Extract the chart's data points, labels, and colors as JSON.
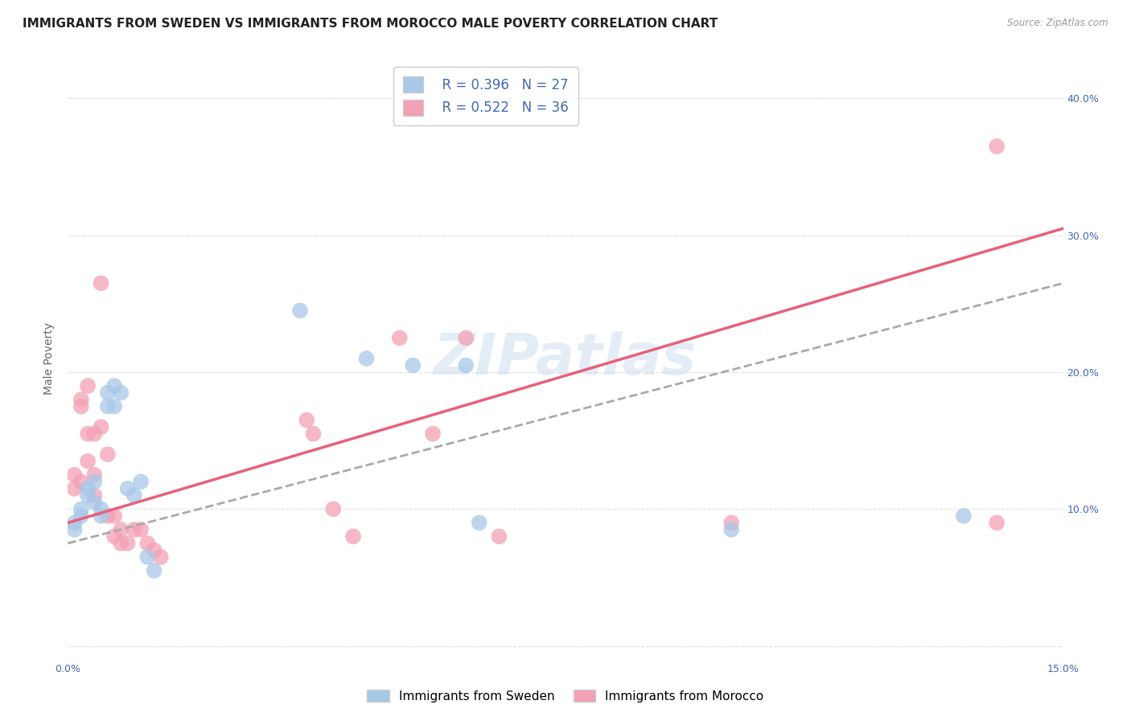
{
  "title": "IMMIGRANTS FROM SWEDEN VS IMMIGRANTS FROM MOROCCO MALE POVERTY CORRELATION CHART",
  "source": "Source: ZipAtlas.com",
  "ylabel": "Male Poverty",
  "xlim": [
    0.0,
    0.15
  ],
  "ylim": [
    -0.01,
    0.43
  ],
  "xticks": [
    0.0,
    0.03,
    0.06,
    0.09,
    0.12,
    0.15
  ],
  "xtick_labels": [
    "0.0%",
    "",
    "",
    "",
    "",
    "15.0%"
  ],
  "yticks": [
    0.0,
    0.1,
    0.2,
    0.3,
    0.4
  ],
  "ytick_labels": [
    "",
    "10.0%",
    "20.0%",
    "30.0%",
    "40.0%"
  ],
  "sweden_color": "#a8c8e8",
  "morocco_color": "#f4a0b5",
  "sweden_line_color": "#6090c0",
  "morocco_line_color": "#e8607a",
  "R_sweden": 0.396,
  "N_sweden": 27,
  "R_morocco": 0.522,
  "N_morocco": 36,
  "watermark": "ZIPatlas",
  "background_color": "#ffffff",
  "sweden_scatter": [
    [
      0.001,
      0.085
    ],
    [
      0.001,
      0.09
    ],
    [
      0.002,
      0.1
    ],
    [
      0.002,
      0.095
    ],
    [
      0.003,
      0.115
    ],
    [
      0.003,
      0.11
    ],
    [
      0.004,
      0.12
    ],
    [
      0.004,
      0.105
    ],
    [
      0.005,
      0.095
    ],
    [
      0.005,
      0.1
    ],
    [
      0.006,
      0.175
    ],
    [
      0.006,
      0.185
    ],
    [
      0.007,
      0.19
    ],
    [
      0.007,
      0.175
    ],
    [
      0.008,
      0.185
    ],
    [
      0.009,
      0.115
    ],
    [
      0.01,
      0.11
    ],
    [
      0.011,
      0.12
    ],
    [
      0.012,
      0.065
    ],
    [
      0.013,
      0.055
    ],
    [
      0.035,
      0.245
    ],
    [
      0.045,
      0.21
    ],
    [
      0.052,
      0.205
    ],
    [
      0.06,
      0.205
    ],
    [
      0.062,
      0.09
    ],
    [
      0.1,
      0.085
    ],
    [
      0.135,
      0.095
    ]
  ],
  "morocco_scatter": [
    [
      0.001,
      0.125
    ],
    [
      0.001,
      0.115
    ],
    [
      0.002,
      0.12
    ],
    [
      0.002,
      0.175
    ],
    [
      0.002,
      0.18
    ],
    [
      0.003,
      0.19
    ],
    [
      0.003,
      0.135
    ],
    [
      0.003,
      0.155
    ],
    [
      0.004,
      0.155
    ],
    [
      0.004,
      0.125
    ],
    [
      0.004,
      0.11
    ],
    [
      0.005,
      0.265
    ],
    [
      0.005,
      0.16
    ],
    [
      0.006,
      0.14
    ],
    [
      0.006,
      0.095
    ],
    [
      0.007,
      0.095
    ],
    [
      0.007,
      0.08
    ],
    [
      0.008,
      0.085
    ],
    [
      0.008,
      0.075
    ],
    [
      0.009,
      0.075
    ],
    [
      0.01,
      0.085
    ],
    [
      0.011,
      0.085
    ],
    [
      0.012,
      0.075
    ],
    [
      0.013,
      0.07
    ],
    [
      0.014,
      0.065
    ],
    [
      0.036,
      0.165
    ],
    [
      0.037,
      0.155
    ],
    [
      0.04,
      0.1
    ],
    [
      0.043,
      0.08
    ],
    [
      0.05,
      0.225
    ],
    [
      0.055,
      0.155
    ],
    [
      0.06,
      0.225
    ],
    [
      0.065,
      0.08
    ],
    [
      0.1,
      0.09
    ],
    [
      0.14,
      0.365
    ],
    [
      0.14,
      0.09
    ]
  ],
  "sweden_trend_x": [
    0.0,
    0.15
  ],
  "sweden_trend_y": [
    0.075,
    0.265
  ],
  "morocco_trend_x": [
    0.0,
    0.15
  ],
  "morocco_trend_y": [
    0.09,
    0.305
  ],
  "grid_color": "#e0e0e0",
  "title_fontsize": 11,
  "axis_label_fontsize": 10,
  "tick_fontsize": 9
}
